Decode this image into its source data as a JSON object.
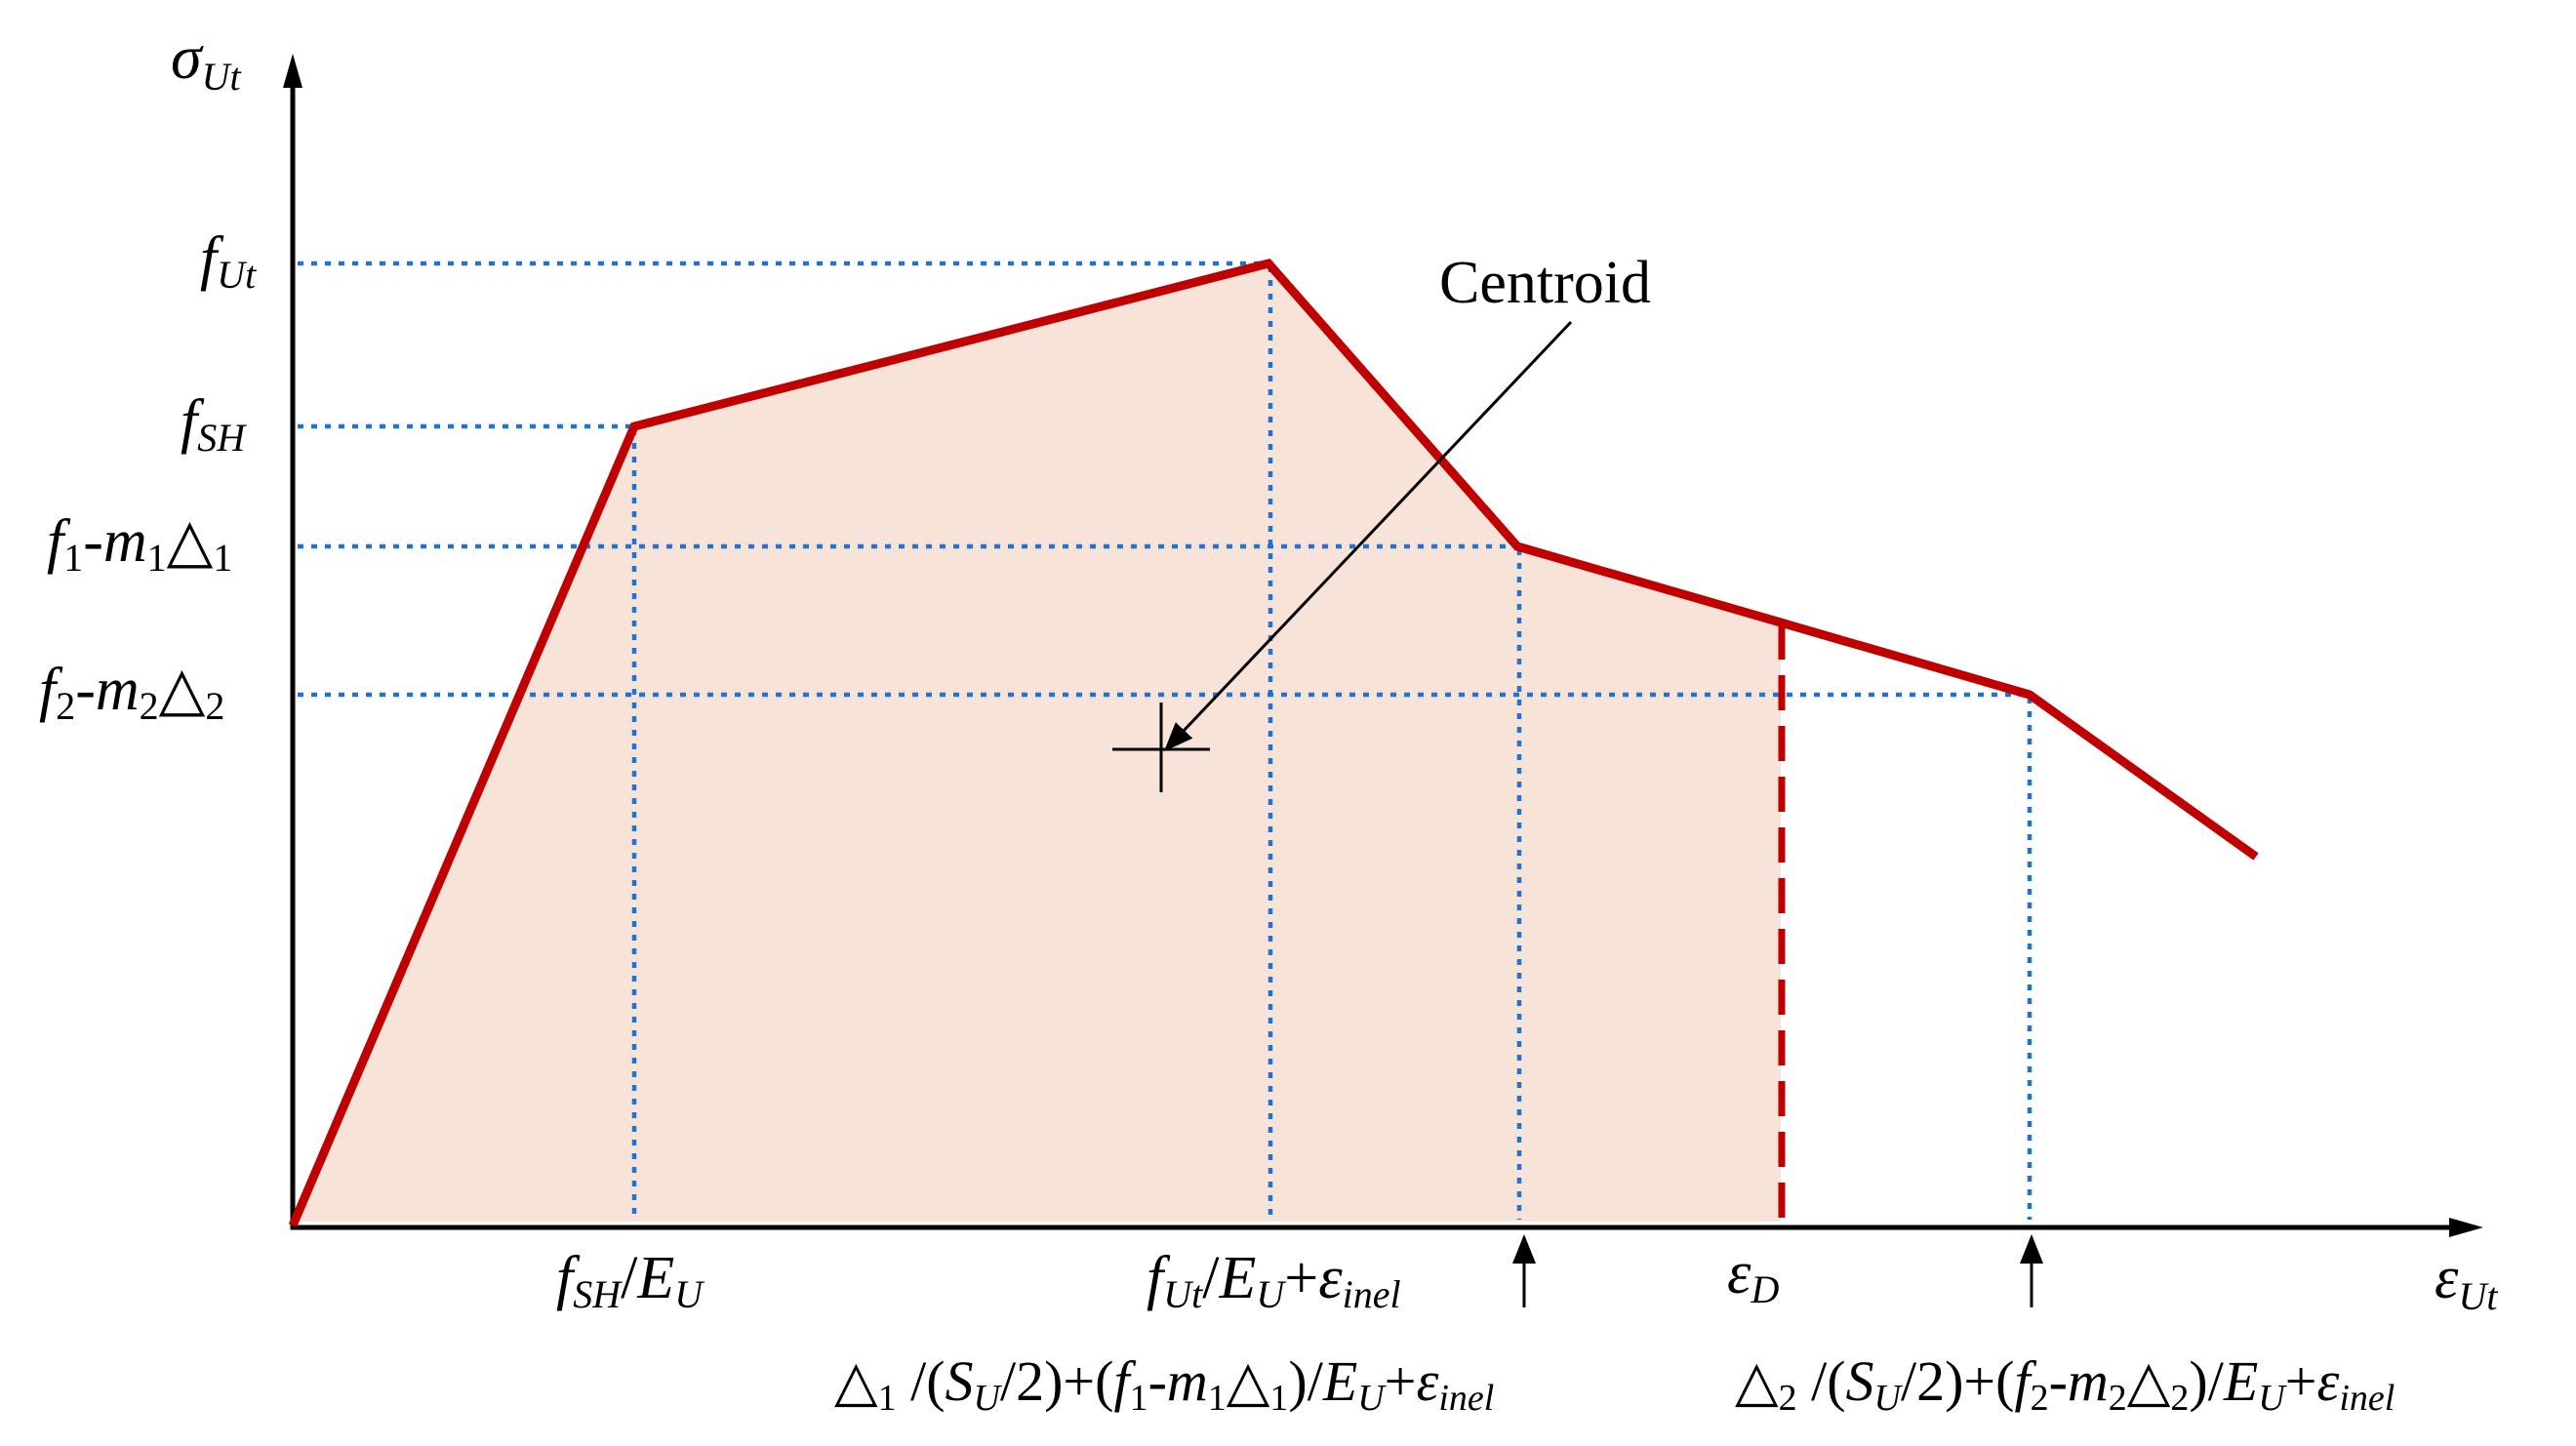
{
  "axes": {
    "y_label": "σUt",
    "x_label": "εUt"
  },
  "y_ticks": {
    "f_ut": "fUt",
    "f_sh": "fSH",
    "f1": "f1-m1△1",
    "f2": "f2-m2△2"
  },
  "x_ticks": {
    "fsh_eu": "fSH/EU",
    "fut_eu": "fUt/EU+εinel",
    "eps_d": "εD",
    "delta1": "△1 /(SU/2)+(f1-m1△1)/EU+εinel",
    "delta2": "△2 /(SU/2)+(f2-m2△2)/EU+εinel"
  },
  "annotation": {
    "centroid": "Centroid"
  },
  "colors": {
    "curve": "#c00000",
    "fill": "#f8e3d8",
    "guide": "#1f73d6",
    "axis": "#000000"
  }
}
